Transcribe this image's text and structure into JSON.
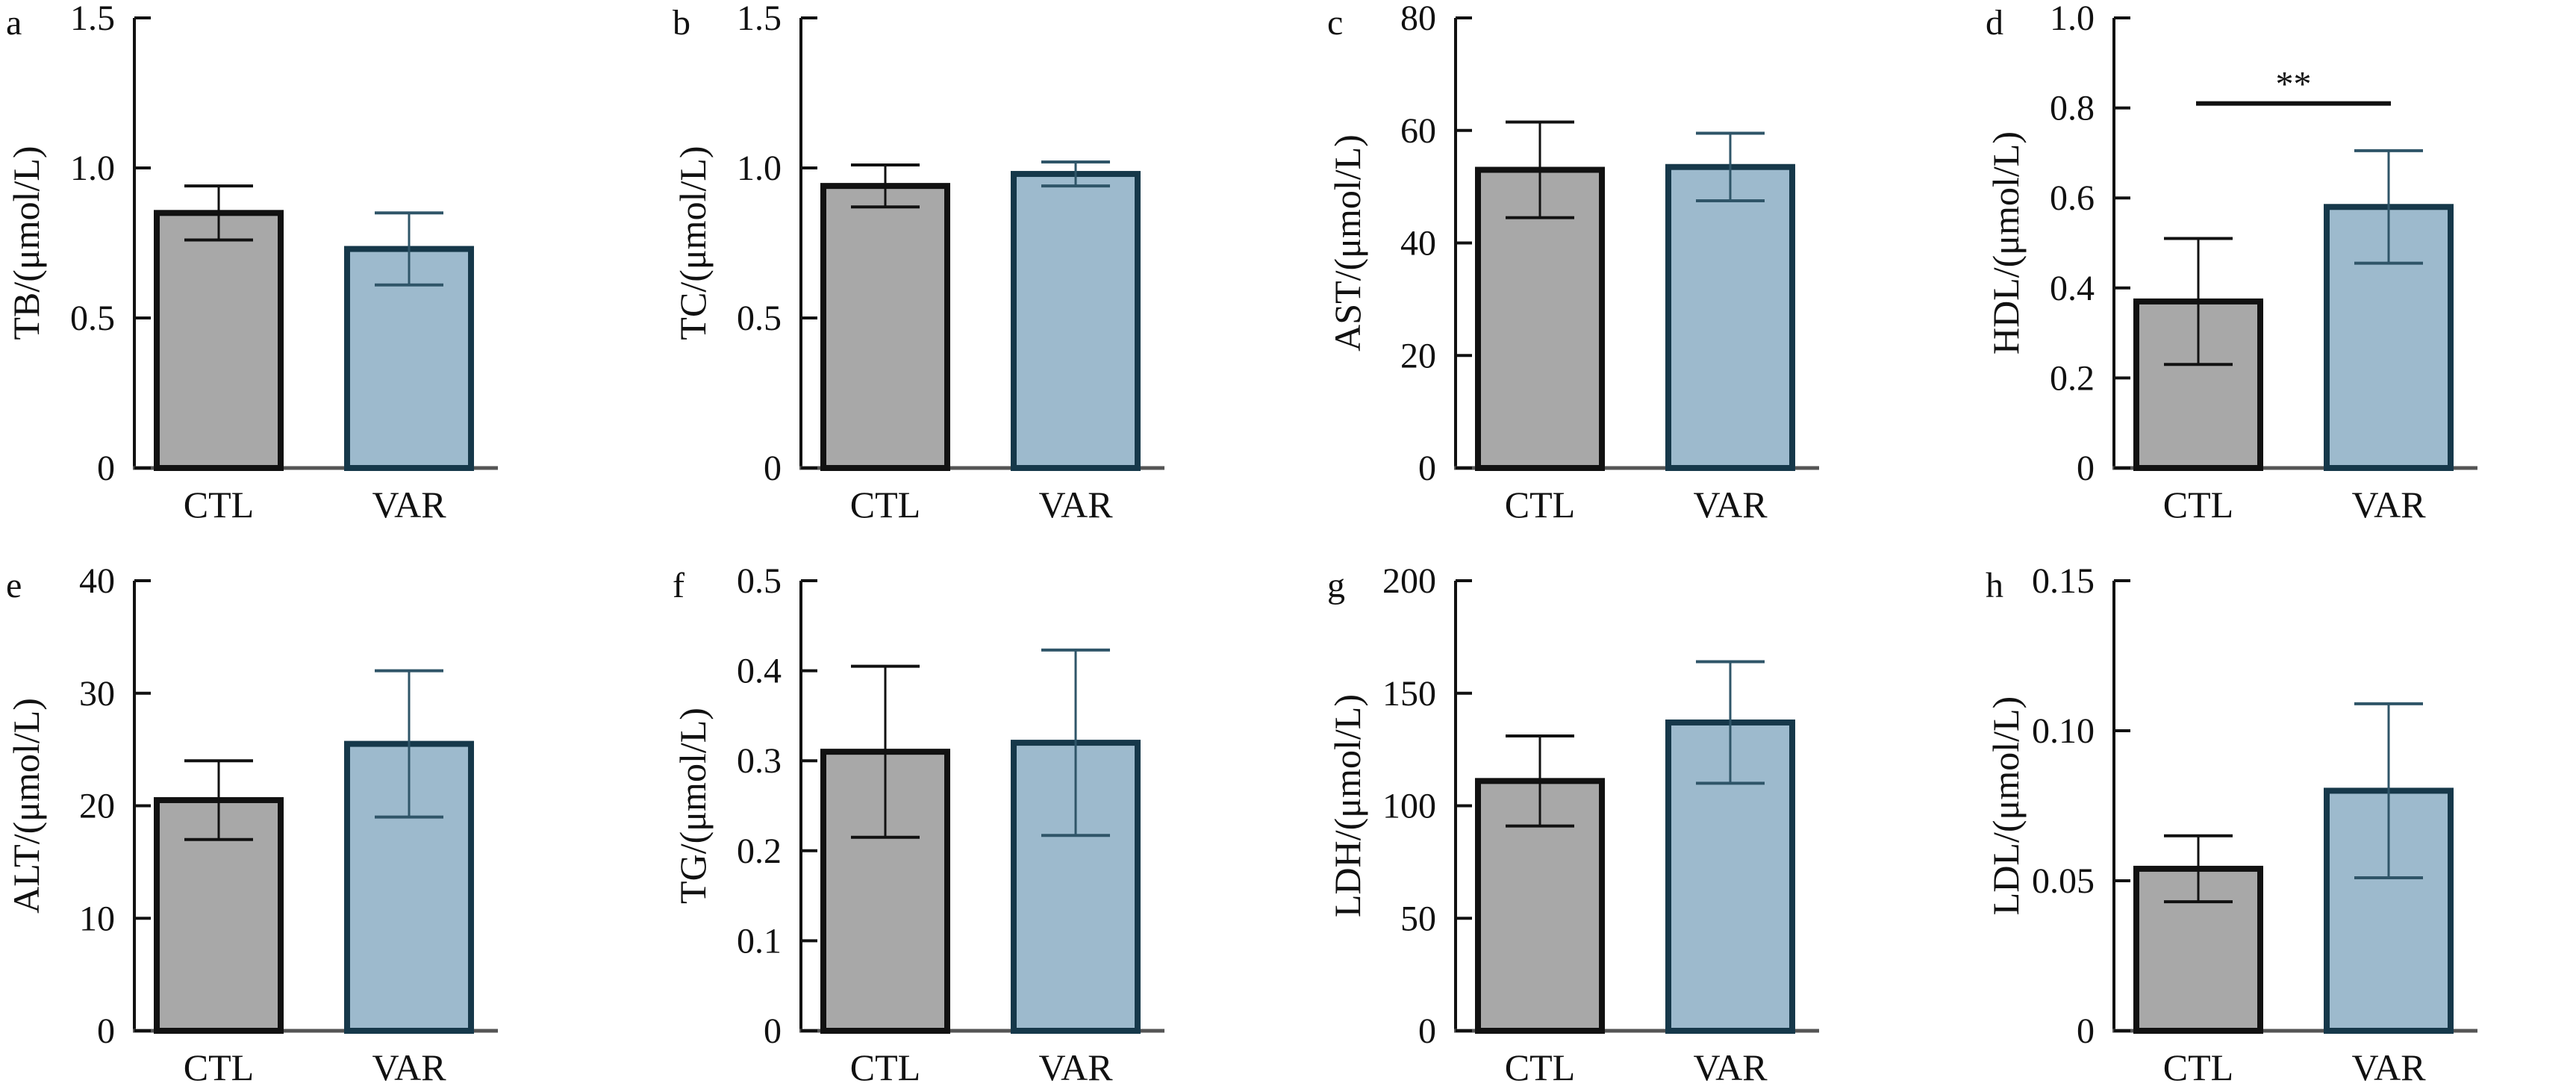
{
  "colors": {
    "ctl_fill": "#a8a8a8",
    "ctl_stroke": "#111111",
    "var_fill": "#9dbacd",
    "var_stroke": "#16384a",
    "var_error": "#2f5568",
    "axis": "#111111"
  },
  "chart_data": [
    {
      "type": "bar",
      "panel": "a",
      "categories": [
        "CTL",
        "VAR"
      ],
      "ylabel": "TB/(μmol/L)",
      "ylim": [
        0,
        1.5
      ],
      "yticks": [
        0,
        0.5,
        1.0,
        1.5
      ],
      "ytick_labels": [
        "0",
        "0.5",
        "1.0",
        "1.5"
      ],
      "values": [
        0.85,
        0.73
      ],
      "errors": [
        0.09,
        0.12
      ]
    },
    {
      "type": "bar",
      "panel": "b",
      "categories": [
        "CTL",
        "VAR"
      ],
      "ylabel": "TC/(μmol/L)",
      "ylim": [
        0,
        1.5
      ],
      "yticks": [
        0,
        0.5,
        1.0,
        1.5
      ],
      "ytick_labels": [
        "0",
        "0.5",
        "1.0",
        "1.5"
      ],
      "values": [
        0.94,
        0.98
      ],
      "errors": [
        0.07,
        0.04
      ]
    },
    {
      "type": "bar",
      "panel": "c",
      "categories": [
        "CTL",
        "VAR"
      ],
      "ylabel": "AST/(μmol/L)",
      "ylim": [
        0,
        80
      ],
      "yticks": [
        0,
        20,
        40,
        60,
        80
      ],
      "ytick_labels": [
        "0",
        "20",
        "40",
        "60",
        "80"
      ],
      "values": [
        53,
        53.5
      ],
      "errors": [
        8.5,
        6
      ]
    },
    {
      "type": "bar",
      "panel": "d",
      "categories": [
        "CTL",
        "VAR"
      ],
      "ylabel": "HDL/(μmol/L)",
      "ylim": [
        0,
        1.0
      ],
      "yticks": [
        0,
        0.2,
        0.4,
        0.6,
        0.8,
        1.0
      ],
      "ytick_labels": [
        "0",
        "0.2",
        "0.4",
        "0.6",
        "0.8",
        "1.0"
      ],
      "values": [
        0.37,
        0.58
      ],
      "errors": [
        0.14,
        0.125
      ],
      "annotation": {
        "text": "**",
        "y": 0.81
      }
    },
    {
      "type": "bar",
      "panel": "e",
      "categories": [
        "CTL",
        "VAR"
      ],
      "ylabel": "ALT/(μmol/L)",
      "ylim": [
        0,
        40
      ],
      "yticks": [
        0,
        10,
        20,
        30,
        40
      ],
      "ytick_labels": [
        "0",
        "10",
        "20",
        "30",
        "40"
      ],
      "values": [
        20.5,
        25.5
      ],
      "errors": [
        3.5,
        6.5
      ]
    },
    {
      "type": "bar",
      "panel": "f",
      "categories": [
        "CTL",
        "VAR"
      ],
      "ylabel": "TG/(μmol/L)",
      "ylim": [
        0,
        0.5
      ],
      "yticks": [
        0,
        0.1,
        0.2,
        0.3,
        0.4,
        0.5
      ],
      "ytick_labels": [
        "0",
        "0.1",
        "0.2",
        "0.3",
        "0.4",
        "0.5"
      ],
      "values": [
        0.31,
        0.32
      ],
      "errors": [
        0.095,
        0.103
      ]
    },
    {
      "type": "bar",
      "panel": "g",
      "categories": [
        "CTL",
        "VAR"
      ],
      "ylabel": "LDH/(μmol/L)",
      "ylim": [
        0,
        200
      ],
      "yticks": [
        0,
        50,
        100,
        150,
        200
      ],
      "ytick_labels": [
        "0",
        "50",
        "100",
        "150",
        "200"
      ],
      "values": [
        111,
        137
      ],
      "errors": [
        20,
        27
      ]
    },
    {
      "type": "bar",
      "panel": "h",
      "categories": [
        "CTL",
        "VAR"
      ],
      "ylabel": "LDL/(μmol/L)",
      "ylim": [
        0,
        0.15
      ],
      "yticks": [
        0,
        0.05,
        0.1,
        0.15
      ],
      "ytick_labels": [
        "0",
        "0.05",
        "0.10",
        "0.15"
      ],
      "values": [
        0.054,
        0.08
      ],
      "errors": [
        0.011,
        0.029
      ]
    }
  ]
}
